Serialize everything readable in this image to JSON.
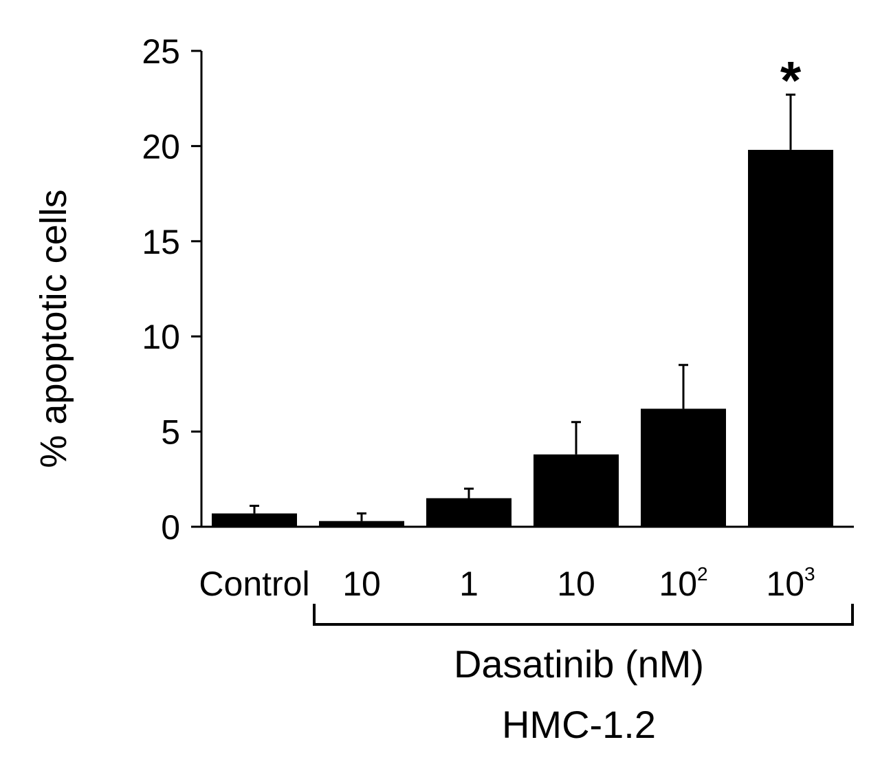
{
  "chart_data": {
    "type": "bar",
    "title": "",
    "ylabel": "% apoptotic cells",
    "xlabel": "Dasatinib (nM)",
    "cell_line": "HMC-1.2",
    "ylim": [
      0,
      25
    ],
    "yticks": [
      0,
      5,
      10,
      15,
      20,
      25
    ],
    "grid": false,
    "categories": [
      {
        "base": "Control",
        "exp": ""
      },
      {
        "base": "10",
        "exp": ""
      },
      {
        "base": "1",
        "exp": ""
      },
      {
        "base": "10",
        "exp": ""
      },
      {
        "base": "10",
        "exp": "2"
      },
      {
        "base": "10",
        "exp": "3"
      }
    ],
    "series": [
      {
        "name": "% apoptotic cells",
        "values": [
          0.7,
          0.3,
          1.5,
          3.8,
          6.2,
          19.8
        ],
        "errors": [
          0.4,
          0.4,
          0.5,
          1.7,
          2.3,
          2.9
        ],
        "color": "#000000"
      }
    ],
    "annotations": [
      {
        "category_index": 5,
        "text": "*"
      }
    ],
    "bracket": {
      "from_index": 1,
      "to_index": 5,
      "label": "Dasatinib (nM)"
    }
  }
}
